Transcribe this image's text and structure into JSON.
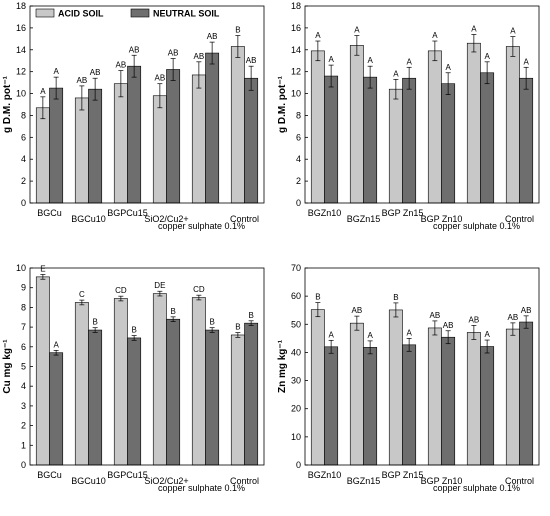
{
  "colors": {
    "acid": "#c8c8c8",
    "neutral": "#6e6e6e",
    "axis": "#000000"
  },
  "legend": {
    "acid": "ACID SOIL",
    "neutral": "NEUTRAL SOIL"
  },
  "chart_data": [
    {
      "type": "bar",
      "ylabel": "g D.M. pot⁻¹",
      "ylim": [
        0,
        18
      ],
      "yticks": [
        0,
        2,
        4,
        6,
        8,
        10,
        12,
        14,
        16,
        18
      ],
      "categories": [
        "BGCu",
        "BGCu10",
        "BGPCu15",
        "SiO2/Cu2+",
        "copper sulphate 0.1%",
        "Control"
      ],
      "series": [
        {
          "name": "ACID SOIL",
          "values": [
            8.7,
            9.6,
            10.9,
            9.8,
            11.7,
            14.3
          ],
          "errors": [
            1.0,
            1.1,
            1.2,
            1.1,
            1.2,
            1.0
          ],
          "letters": [
            "A",
            "AB",
            "AB",
            "AB",
            "AB",
            "B"
          ]
        },
        {
          "name": "NEUTRAL SOIL",
          "values": [
            10.5,
            10.4,
            12.5,
            12.2,
            13.7,
            11.4
          ],
          "errors": [
            1.0,
            1.0,
            1.0,
            1.0,
            1.0,
            1.1
          ],
          "letters": [
            "A",
            "AB",
            "AB",
            "AB",
            "AB",
            "AB"
          ]
        }
      ],
      "legend": true
    },
    {
      "type": "bar",
      "ylabel": "g D.M. pot⁻¹",
      "ylim": [
        0,
        18
      ],
      "yticks": [
        0,
        2,
        4,
        6,
        8,
        10,
        12,
        14,
        16,
        18
      ],
      "categories": [
        "BGZn10",
        "BGZn15",
        "BGP Zn15",
        "BGP Zn10",
        "copper sulphate 0.1%",
        "Control"
      ],
      "series": [
        {
          "name": "ACID SOIL",
          "values": [
            13.9,
            14.4,
            10.4,
            13.9,
            14.6,
            14.3
          ],
          "errors": [
            0.9,
            0.9,
            0.9,
            0.9,
            0.8,
            0.9
          ],
          "letters": [
            "A",
            "A",
            "A",
            "A",
            "A",
            "A"
          ]
        },
        {
          "name": "NEUTRAL SOIL",
          "values": [
            11.6,
            11.5,
            11.4,
            10.9,
            11.9,
            11.4
          ],
          "errors": [
            1.0,
            1.0,
            1.0,
            1.0,
            1.0,
            1.0
          ],
          "letters": [
            "A",
            "A",
            "A",
            "A",
            "A",
            "A"
          ]
        }
      ],
      "legend": false
    },
    {
      "type": "bar",
      "ylabel": "Cu mg kg⁻¹",
      "ylim": [
        0,
        10
      ],
      "yticks": [
        0,
        1,
        2,
        3,
        4,
        5,
        6,
        7,
        8,
        9,
        10
      ],
      "categories": [
        "BGCu",
        "BGCu10",
        "BGPCu15",
        "SiO2/Cu2+",
        "copper sulphate 0.1%",
        "Control"
      ],
      "series": [
        {
          "name": "ACID SOIL",
          "values": [
            9.55,
            8.25,
            8.45,
            8.7,
            8.5,
            6.6
          ],
          "errors": [
            0.12,
            0.12,
            0.12,
            0.12,
            0.12,
            0.12
          ],
          "letters": [
            "E",
            "C",
            "CD",
            "DE",
            "CD",
            "B"
          ]
        },
        {
          "name": "NEUTRAL SOIL",
          "values": [
            5.7,
            6.85,
            6.45,
            7.4,
            6.85,
            7.2
          ],
          "errors": [
            0.12,
            0.12,
            0.12,
            0.12,
            0.12,
            0.12
          ],
          "letters": [
            "A",
            "B",
            "B",
            "B",
            "B",
            "B"
          ]
        }
      ],
      "legend": false
    },
    {
      "type": "bar",
      "ylabel": "Zn mg kg⁻¹",
      "ylim": [
        0,
        70
      ],
      "yticks": [
        0,
        10,
        20,
        30,
        40,
        50,
        60,
        70
      ],
      "categories": [
        "BGZn10",
        "BGZn15",
        "BGP Zn15",
        "BGP Zn10",
        "copper sulphate 0.1%",
        "Control"
      ],
      "series": [
        {
          "name": "ACID SOIL",
          "values": [
            55.2,
            50.4,
            55.1,
            48.7,
            47.1,
            48.3
          ],
          "errors": [
            2.5,
            2.5,
            2.5,
            2.5,
            2.5,
            2.2
          ],
          "letters": [
            "B",
            "AB",
            "B",
            "AB",
            "AB",
            "AB"
          ]
        },
        {
          "name": "NEUTRAL SOIL",
          "values": [
            42.0,
            41.8,
            42.7,
            45.4,
            42.1,
            50.8
          ],
          "errors": [
            2.3,
            2.3,
            2.3,
            2.3,
            2.3,
            2.2
          ],
          "letters": [
            "A",
            "A",
            "A",
            "AB",
            "A",
            "AB"
          ]
        }
      ],
      "legend": false
    }
  ]
}
